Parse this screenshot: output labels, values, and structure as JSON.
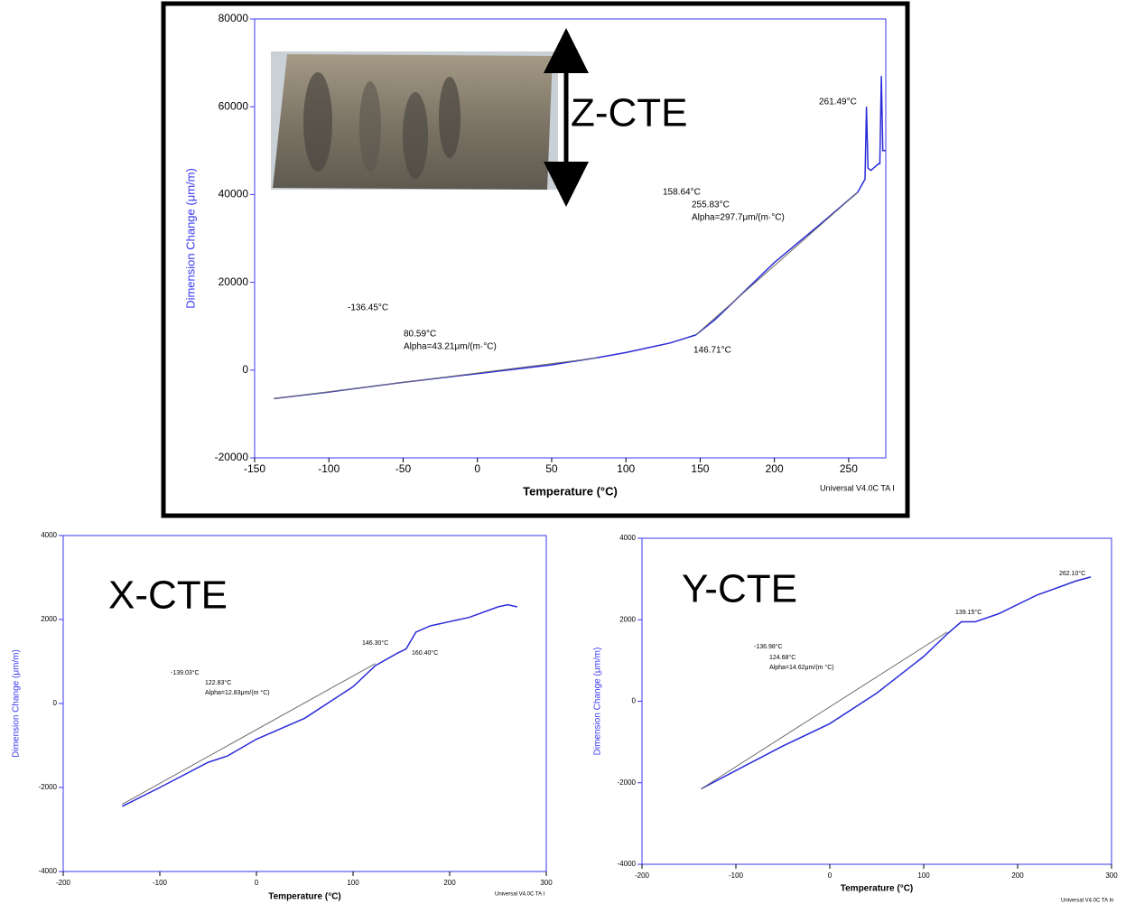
{
  "chart_data": [
    {
      "type": "line",
      "label": "Z-CTE",
      "xlabel": "Temperature (°C)",
      "ylabel": "Dimension Change (μm/m)",
      "xlim": [
        -150,
        275
      ],
      "ylim": [
        -20000,
        80000
      ],
      "xticks": [
        -150,
        -100,
        -50,
        0,
        50,
        100,
        150,
        200,
        250
      ],
      "yticks": [
        -20000,
        0,
        20000,
        40000,
        60000,
        80000
      ],
      "annotations": [
        "-136.45°C",
        "80.59°C",
        "Alpha=43.21μm/(m·°C)",
        "146.71°C",
        "158.64°C",
        "255.83°C",
        "Alpha=297.7μm/(m·°C)",
        "261.49°C"
      ],
      "footer": "Universal V4.0C TA I",
      "series": [
        {
          "color": "#2b2bd9",
          "x": [
            -137,
            -100,
            -50,
            0,
            50,
            80,
            100,
            130,
            147,
            160,
            180,
            200,
            230,
            256,
            261,
            262,
            263,
            265,
            270,
            271,
            272,
            273,
            275
          ],
          "values": [
            -6500,
            -5000,
            -2800,
            -800,
            1200,
            2800,
            4000,
            6200,
            8000,
            11500,
            18000,
            24500,
            33000,
            40500,
            43500,
            60000,
            46000,
            45500,
            47000,
            47000,
            67000,
            50000,
            50000
          ]
        },
        {
          "color": "#6e6e6e",
          "x": [
            -137,
            81,
            null,
            147,
            256
          ],
          "values": [
            -6500,
            2800,
            null,
            8000,
            40500
          ]
        }
      ]
    },
    {
      "type": "line",
      "label": "X-CTE",
      "xlabel": "Temperature (°C)",
      "ylabel": "Dimension Change (μm/m)",
      "xlim": [
        -200,
        300
      ],
      "ylim": [
        -4000,
        4000
      ],
      "xticks": [
        -200,
        -100,
        0,
        100,
        200,
        300
      ],
      "yticks": [
        -4000,
        -2000,
        0,
        2000,
        4000
      ],
      "annotations": [
        "-139.03°C",
        "122.83°C",
        "Alpha=12.83μm/(m °C)",
        "146.30°C",
        "160.40°C"
      ],
      "footer": "Universal V4.0C TA I",
      "series": [
        {
          "color": "#2b2bd9",
          "x": [
            -139,
            -100,
            -50,
            -30,
            0,
            50,
            100,
            123,
            146,
            155,
            160,
            165,
            180,
            200,
            220,
            250,
            260,
            270
          ],
          "values": [
            -2450,
            -2000,
            -1400,
            -1250,
            -850,
            -350,
            400,
            900,
            1200,
            1300,
            1500,
            1700,
            1850,
            1950,
            2050,
            2300,
            2350,
            2300
          ]
        },
        {
          "color": "#6e6e6e",
          "x": [
            -139,
            123
          ],
          "values": [
            -2400,
            950
          ]
        }
      ]
    },
    {
      "type": "line",
      "label": "Y-CTE",
      "xlabel": "Temperature (°C)",
      "ylabel": "Dimension Change (μm/m)",
      "xlim": [
        -200,
        300
      ],
      "ylim": [
        -4000,
        4000
      ],
      "xticks": [
        -200,
        -100,
        0,
        100,
        200,
        300
      ],
      "yticks": [
        -4000,
        -2000,
        0,
        2000,
        4000
      ],
      "annotations": [
        "-136.98°C",
        "124.68°C",
        "Alpha=14.62μm/(m °C)",
        "139.15°C",
        "262.10°C"
      ],
      "footer": "Universal V4.0C TA In",
      "series": [
        {
          "color": "#2b2bd9",
          "x": [
            -137,
            -100,
            -50,
            0,
            50,
            100,
            125,
            140,
            155,
            180,
            220,
            262,
            278
          ],
          "values": [
            -2150,
            -1700,
            -1100,
            -550,
            200,
            1100,
            1650,
            1950,
            1950,
            2150,
            2600,
            2950,
            3050
          ]
        },
        {
          "color": "#6e6e6e",
          "x": [
            -137,
            125
          ],
          "values": [
            -2150,
            1700
          ]
        }
      ]
    }
  ]
}
